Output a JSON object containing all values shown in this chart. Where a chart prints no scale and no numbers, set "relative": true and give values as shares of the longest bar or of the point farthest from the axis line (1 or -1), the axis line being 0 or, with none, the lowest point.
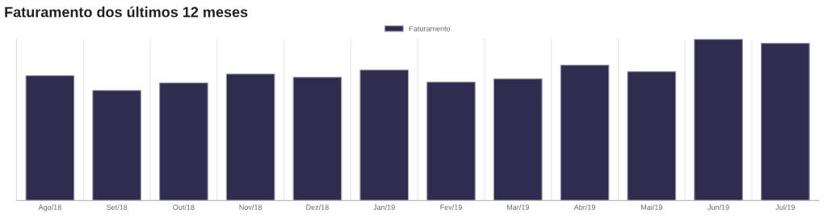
{
  "chart_data": {
    "type": "bar",
    "title": "Faturamento dos últimos 12 meses",
    "relative": true,
    "categories": [
      "Ago/18",
      "Set/18",
      "Out/18",
      "Nov/18",
      "Dez/18",
      "Jan/19",
      "Fev/19",
      "Mar/19",
      "Abr/19",
      "Mai/19",
      "Jun/19",
      "Jul/19"
    ],
    "series": [
      {
        "name": "Faturamento",
        "color": "#2e2d4d",
        "values": [
          0.774,
          0.683,
          0.729,
          0.784,
          0.764,
          0.809,
          0.734,
          0.754,
          0.839,
          0.799,
          1,
          0.975
        ]
      }
    ],
    "grid": true,
    "legend": "top"
  }
}
